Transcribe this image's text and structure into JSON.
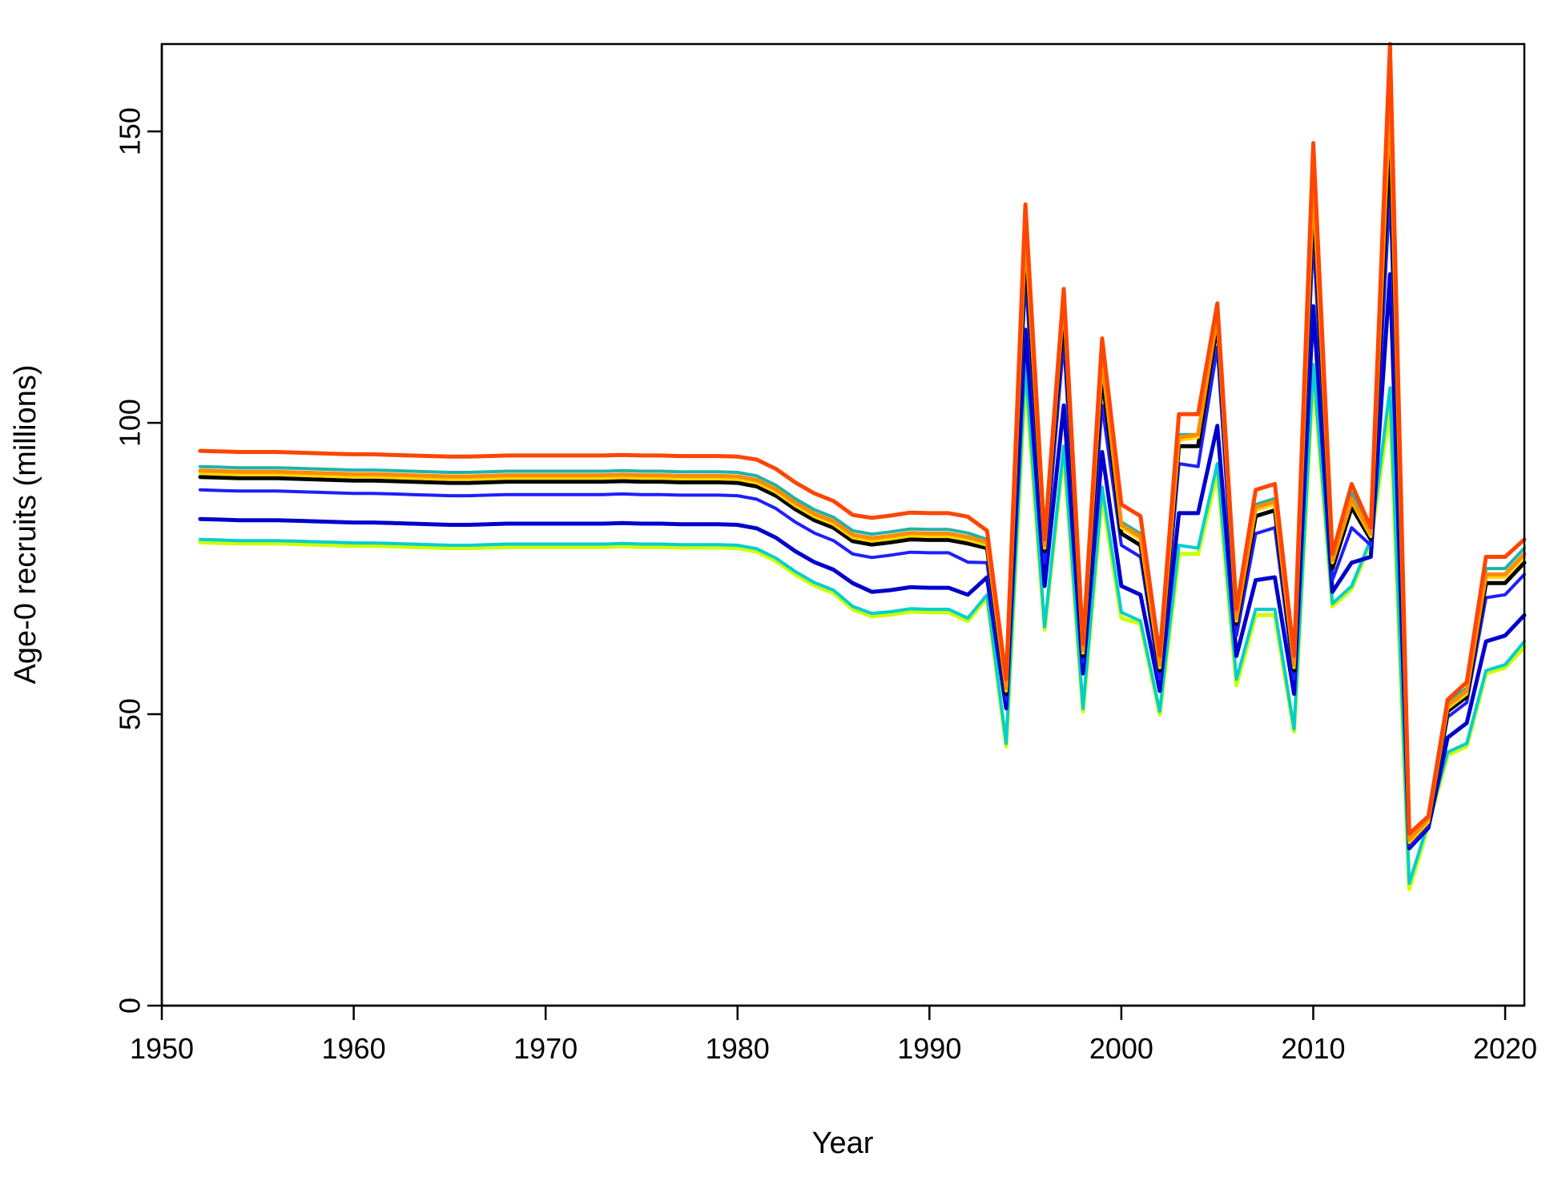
{
  "chart_data": {
    "type": "line",
    "xlabel": "Year",
    "ylabel": "Age-0 recruits (millions)",
    "xlim": [
      1950,
      2021
    ],
    "ylim": [
      0,
      165
    ],
    "x_ticks": [
      1950,
      1960,
      1970,
      1980,
      1990,
      2000,
      2010,
      2020
    ],
    "y_ticks": [
      0,
      50,
      100,
      150
    ],
    "grid": false,
    "legend": "none",
    "x": [
      1952,
      1953,
      1954,
      1955,
      1956,
      1957,
      1958,
      1959,
      1960,
      1961,
      1962,
      1963,
      1964,
      1965,
      1966,
      1967,
      1968,
      1969,
      1970,
      1971,
      1972,
      1973,
      1974,
      1975,
      1976,
      1977,
      1978,
      1979,
      1980,
      1981,
      1982,
      1983,
      1984,
      1985,
      1986,
      1987,
      1988,
      1989,
      1990,
      1991,
      1992,
      1993,
      1994,
      1995,
      1996,
      1997,
      1998,
      1999,
      2000,
      2001,
      2002,
      2003,
      2004,
      2005,
      2006,
      2007,
      2008,
      2009,
      2010,
      2011,
      2012,
      2013,
      2014,
      2015,
      2016,
      2017,
      2018,
      2019,
      2020,
      2021
    ],
    "series": [
      {
        "color": "#FF4500",
        "width": 5,
        "values": [
          95.2,
          95.1,
          95.0,
          95.0,
          95.0,
          94.9,
          94.8,
          94.7,
          94.6,
          94.6,
          94.5,
          94.4,
          94.3,
          94.2,
          94.2,
          94.3,
          94.4,
          94.4,
          94.4,
          94.4,
          94.4,
          94.4,
          94.5,
          94.4,
          94.4,
          94.3,
          94.3,
          94.3,
          94.2,
          93.7,
          92.1,
          89.8,
          87.9,
          86.6,
          84.2,
          83.7,
          84.1,
          84.6,
          84.5,
          84.5,
          83.9,
          81.5,
          56.0,
          137.5,
          80.0,
          123.0,
          62.0,
          114.5,
          86.0,
          84.0,
          60.0,
          101.5,
          101.5,
          120.5,
          68.0,
          88.5,
          89.5,
          60.0,
          148.0,
          77.5,
          89.5,
          82.0,
          165.0,
          29.5,
          32.5,
          52.5,
          55.5,
          77.0,
          77.0,
          80.0
        ]
      },
      {
        "color": "#FF8C00",
        "width": 5,
        "values": [
          91.8,
          91.7,
          91.6,
          91.6,
          91.6,
          91.5,
          91.4,
          91.3,
          91.2,
          91.2,
          91.1,
          91.0,
          90.9,
          90.8,
          90.8,
          90.9,
          91.0,
          91.0,
          91.0,
          91.0,
          91.0,
          91.0,
          91.1,
          91.0,
          91.0,
          90.9,
          90.9,
          90.9,
          90.8,
          90.2,
          88.6,
          86.3,
          84.4,
          83.1,
          80.8,
          80.2,
          80.6,
          81.1,
          81.0,
          81.0,
          80.4,
          79.5,
          54.5,
          133.0,
          79.0,
          121.5,
          61.0,
          111.0,
          82.5,
          80.5,
          58.5,
          97.5,
          98.0,
          118.5,
          66.5,
          85.5,
          86.5,
          58.5,
          141.0,
          76.5,
          87.0,
          81.0,
          156.0,
          28.5,
          32.0,
          51.5,
          54.0,
          74.0,
          74.0,
          77.5
        ]
      },
      {
        "color": "#FFD700",
        "width": 4,
        "values": [
          91.3,
          91.2,
          91.1,
          91.1,
          91.1,
          91.0,
          90.9,
          90.8,
          90.7,
          90.7,
          90.6,
          90.5,
          90.4,
          90.3,
          90.3,
          90.4,
          90.5,
          90.5,
          90.5,
          90.5,
          90.5,
          90.5,
          90.6,
          90.5,
          90.5,
          90.4,
          90.4,
          90.4,
          90.3,
          89.7,
          88.1,
          85.8,
          83.9,
          82.6,
          80.3,
          79.7,
          80.1,
          80.6,
          80.5,
          80.5,
          79.9,
          79.0,
          54.0,
          132.0,
          78.5,
          120.5,
          60.5,
          110.0,
          82.0,
          80.0,
          58.0,
          97.0,
          97.5,
          118.0,
          66.0,
          85.0,
          86.0,
          58.0,
          140.0,
          76.0,
          86.5,
          80.5,
          155.0,
          28.0,
          31.5,
          51.0,
          53.5,
          73.5,
          73.5,
          77.0
        ]
      },
      {
        "color": "#20B2AA",
        "width": 4,
        "values": [
          92.5,
          92.4,
          92.3,
          92.3,
          92.3,
          92.2,
          92.1,
          92.0,
          91.9,
          91.9,
          91.8,
          91.7,
          91.6,
          91.5,
          91.5,
          91.6,
          91.7,
          91.7,
          91.7,
          91.7,
          91.7,
          91.7,
          91.8,
          91.7,
          91.7,
          91.6,
          91.6,
          91.6,
          91.5,
          90.9,
          89.3,
          87.0,
          85.1,
          83.8,
          81.5,
          80.9,
          81.3,
          81.8,
          81.7,
          81.7,
          81.1,
          80.0,
          54.5,
          134.0,
          79.5,
          122.0,
          61.0,
          112.0,
          83.0,
          81.0,
          58.5,
          98.0,
          98.0,
          119.0,
          67.0,
          86.0,
          87.0,
          59.0,
          143.0,
          77.0,
          88.0,
          81.5,
          158.0,
          28.5,
          32.0,
          52.0,
          54.5,
          75.0,
          75.0,
          78.5
        ]
      },
      {
        "color": "#000000",
        "width": 5,
        "values": [
          90.7,
          90.6,
          90.5,
          90.5,
          90.5,
          90.4,
          90.3,
          90.2,
          90.1,
          90.1,
          90.0,
          89.9,
          89.8,
          89.7,
          89.7,
          89.8,
          89.9,
          89.9,
          89.9,
          89.9,
          89.9,
          89.9,
          90.0,
          89.9,
          89.9,
          89.8,
          89.8,
          89.8,
          89.7,
          89.1,
          87.5,
          85.2,
          83.3,
          82.0,
          79.7,
          79.1,
          79.5,
          80.0,
          79.9,
          79.9,
          79.3,
          78.5,
          53.5,
          130.0,
          78.0,
          119.0,
          60.0,
          108.0,
          81.0,
          79.0,
          57.5,
          96.0,
          96.0,
          117.0,
          65.5,
          84.0,
          85.0,
          57.5,
          138.0,
          75.0,
          85.5,
          80.0,
          150.0,
          28.0,
          31.5,
          50.5,
          53.0,
          72.5,
          72.5,
          76.0
        ]
      },
      {
        "color": "#1E1EFF",
        "width": 4,
        "values": [
          88.5,
          88.4,
          88.3,
          88.3,
          88.3,
          88.2,
          88.1,
          88.0,
          87.9,
          87.9,
          87.8,
          87.7,
          87.6,
          87.5,
          87.5,
          87.6,
          87.7,
          87.7,
          87.7,
          87.7,
          87.7,
          87.7,
          87.8,
          87.7,
          87.7,
          87.6,
          87.6,
          87.6,
          87.5,
          86.9,
          85.3,
          83.0,
          81.1,
          79.8,
          77.5,
          76.9,
          77.3,
          77.8,
          77.7,
          77.7,
          76.1,
          76.0,
          52.5,
          125.0,
          76.0,
          114.0,
          59.0,
          103.0,
          79.0,
          77.0,
          56.0,
          93.0,
          92.5,
          113.0,
          63.5,
          81.0,
          82.0,
          56.0,
          132.0,
          73.0,
          82.0,
          79.0,
          140.0,
          27.5,
          31.0,
          49.5,
          52.0,
          70.0,
          70.5,
          74.0
        ]
      },
      {
        "color": "#0000CD",
        "width": 5,
        "values": [
          83.5,
          83.4,
          83.3,
          83.3,
          83.3,
          83.2,
          83.1,
          83.0,
          82.9,
          82.9,
          82.8,
          82.7,
          82.6,
          82.5,
          82.5,
          82.6,
          82.7,
          82.7,
          82.7,
          82.7,
          82.7,
          82.7,
          82.8,
          82.7,
          82.7,
          82.6,
          82.6,
          82.6,
          82.5,
          81.9,
          80.3,
          78.0,
          76.1,
          74.8,
          72.5,
          71.0,
          71.3,
          71.8,
          71.7,
          71.7,
          70.5,
          73.5,
          51.0,
          116.0,
          72.0,
          103.0,
          57.0,
          95.0,
          72.0,
          70.5,
          54.0,
          84.5,
          84.5,
          99.5,
          60.0,
          73.0,
          73.5,
          53.5,
          120.0,
          71.0,
          76.0,
          77.0,
          125.5,
          27.0,
          30.5,
          46.0,
          48.5,
          62.5,
          63.5,
          67.0
        ]
      },
      {
        "color": "#00CED1",
        "width": 4,
        "values": [
          80.0,
          79.9,
          79.8,
          79.8,
          79.8,
          79.7,
          79.6,
          79.5,
          79.4,
          79.4,
          79.3,
          79.2,
          79.1,
          79.0,
          79.0,
          79.1,
          79.2,
          79.2,
          79.2,
          79.2,
          79.2,
          79.2,
          79.3,
          79.2,
          79.2,
          79.1,
          79.1,
          79.1,
          79.0,
          78.4,
          76.8,
          74.5,
          72.6,
          71.3,
          68.5,
          67.3,
          67.6,
          68.1,
          68.0,
          68.0,
          66.5,
          70.5,
          45.0,
          110.0,
          65.0,
          96.0,
          51.0,
          89.0,
          67.5,
          66.0,
          50.5,
          79.0,
          78.5,
          93.0,
          56.0,
          68.0,
          68.0,
          47.5,
          110.0,
          69.0,
          72.0,
          80.0,
          106.0,
          21.0,
          31.5,
          43.5,
          45.0,
          57.5,
          58.5,
          62.5
        ]
      },
      {
        "color": "#CCFF00",
        "width": 5,
        "values": [
          79.5,
          79.4,
          79.3,
          79.3,
          79.3,
          79.2,
          79.1,
          79.0,
          78.9,
          78.9,
          78.8,
          78.7,
          78.6,
          78.5,
          78.5,
          78.6,
          78.7,
          78.7,
          78.7,
          78.7,
          78.7,
          78.7,
          78.8,
          78.7,
          78.7,
          78.6,
          78.6,
          78.6,
          78.5,
          77.9,
          76.3,
          74.0,
          72.1,
          70.8,
          68.0,
          66.8,
          67.1,
          67.6,
          67.5,
          67.5,
          66.0,
          70.0,
          44.5,
          108.0,
          64.5,
          95.0,
          50.5,
          87.5,
          66.5,
          65.5,
          50.0,
          77.5,
          77.5,
          91.5,
          55.0,
          67.0,
          67.0,
          47.0,
          108.5,
          68.5,
          71.5,
          79.5,
          103.0,
          20.0,
          31.0,
          43.0,
          44.5,
          57.0,
          58.0,
          61.5
        ]
      }
    ]
  }
}
